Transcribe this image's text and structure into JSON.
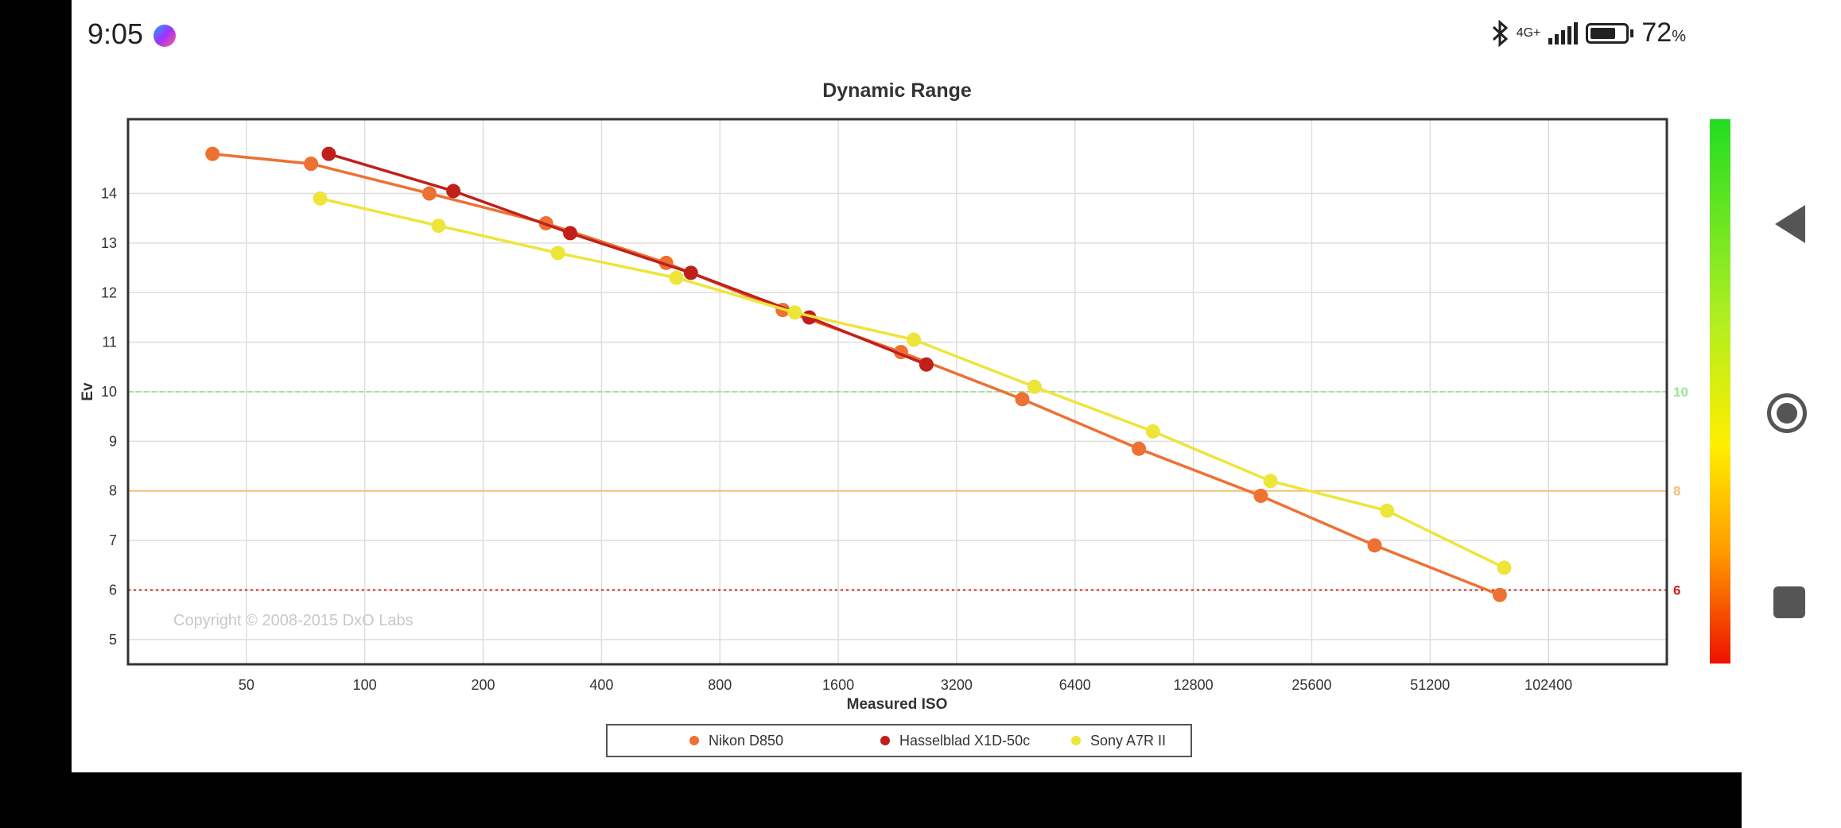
{
  "status_bar": {
    "time": "9:05",
    "network": "4G+",
    "battery_percent": "72",
    "battery_unit": "%",
    "battery_level": 0.72,
    "icons": [
      "messenger-icon",
      "bluetooth-icon",
      "signal-icon",
      "battery-icon"
    ]
  },
  "nav_bar": {
    "icons": [
      "back-icon",
      "home-icon",
      "recents-icon"
    ]
  },
  "chart_data": {
    "type": "line",
    "title": "Dynamic Range",
    "xlabel": "Measured ISO",
    "ylabel": "Ev",
    "x_scale": "log2",
    "x_ticks": [
      "50",
      "100",
      "200",
      "400",
      "800",
      "1600",
      "3200",
      "6400",
      "12800",
      "25600",
      "51200",
      "102400"
    ],
    "y_ticks": [
      "5",
      "6",
      "7",
      "8",
      "9",
      "10",
      "11",
      "12",
      "13",
      "14"
    ],
    "xlim": [
      25,
      204800
    ],
    "ylim": [
      4.5,
      15.5
    ],
    "grid": true,
    "legend_position": "bottom-center",
    "watermark": "Copyright © 2008-2015 DxO Labs",
    "reference_lines": [
      {
        "value": 10,
        "label": "10",
        "color": "#9be39b",
        "style": "dashed"
      },
      {
        "value": 8,
        "label": "8",
        "color": "#f4c07a",
        "style": "solid"
      },
      {
        "value": 6,
        "label": "6",
        "color": "#cc2222",
        "style": "dotted"
      }
    ],
    "series": [
      {
        "name": "Nikon D850",
        "color": "#ed7132",
        "x": [
          41,
          73,
          146,
          289,
          584,
          1156,
          2310,
          4700,
          9300,
          19000,
          37000,
          77000
        ],
        "y": [
          14.8,
          14.6,
          14.0,
          13.4,
          12.6,
          11.65,
          10.8,
          9.85,
          8.85,
          7.9,
          6.9,
          5.9
        ]
      },
      {
        "name": "Hasselblad X1D-50c",
        "color": "#c0201a",
        "x": [
          81,
          168,
          333,
          675,
          1350,
          2680
        ],
        "y": [
          14.8,
          14.05,
          13.2,
          12.4,
          11.5,
          10.55
        ]
      },
      {
        "name": "Sony A7R II",
        "color": "#ede53a",
        "x": [
          77,
          154,
          310,
          620,
          1240,
          2490,
          5050,
          10100,
          20100,
          39800,
          79000
        ],
        "y": [
          13.9,
          13.35,
          12.8,
          12.3,
          11.6,
          11.05,
          10.1,
          9.2,
          8.2,
          7.6,
          6.45
        ]
      }
    ]
  }
}
